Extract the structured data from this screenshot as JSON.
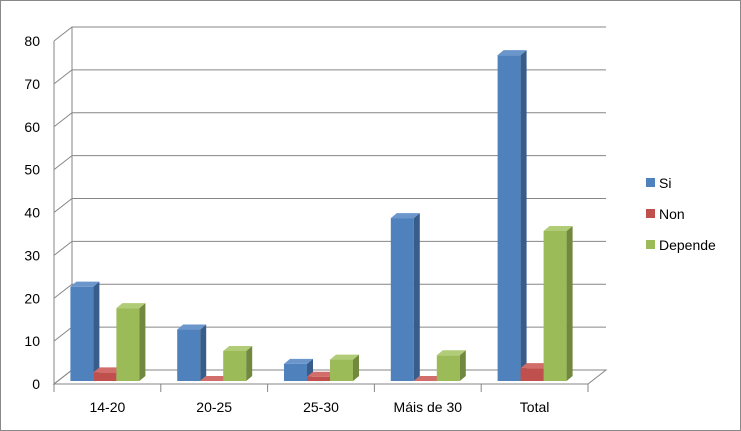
{
  "chart_data": {
    "type": "bar",
    "variant": "3d-clustered-column",
    "categories": [
      "14-20",
      "20-25",
      "25-30",
      "Máis de 30",
      "Total"
    ],
    "series": [
      {
        "name": "Si",
        "values": [
          22,
          12,
          4,
          38,
          76
        ]
      },
      {
        "name": "Non",
        "values": [
          2,
          0,
          1,
          0,
          3
        ]
      },
      {
        "name": "Depende",
        "values": [
          17,
          7,
          5,
          6,
          35
        ]
      }
    ],
    "ylim": [
      0,
      80
    ],
    "yticks": [
      0,
      10,
      20,
      30,
      40,
      50,
      60,
      70,
      80
    ],
    "grid": true,
    "legend_position": "right",
    "title": "",
    "xlabel": "",
    "ylabel": ""
  },
  "colors": {
    "Si": {
      "front": "#4F81BD",
      "top": "#6A96CC",
      "side": "#385D8A"
    },
    "Non": {
      "front": "#C0504D",
      "top": "#D16D6A",
      "side": "#8C3A38"
    },
    "Depende": {
      "front": "#9BBB59",
      "top": "#B0CC77",
      "side": "#71893F"
    },
    "gridline": "#868686",
    "frame": "#898989"
  }
}
